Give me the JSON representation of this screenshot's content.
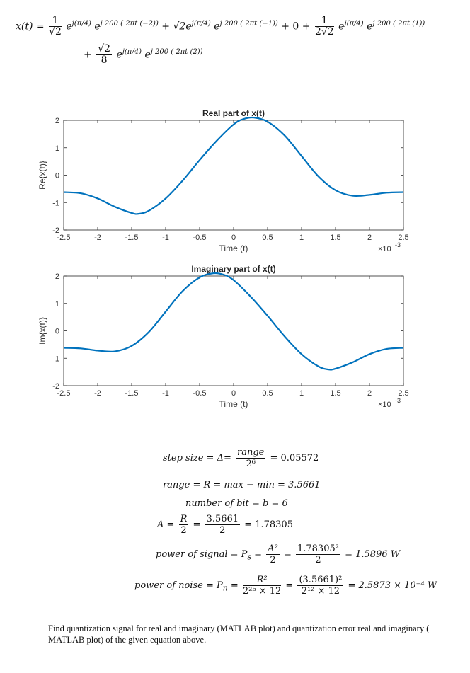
{
  "equation": {
    "lhs": "x(t) =",
    "t1_coef_num": "1",
    "t1_coef_den": "√2",
    "t1_exp1": "e",
    "t1_phase": "j(π/4)",
    "t1_exp2": "e",
    "t1_arg": "j 200 ( 2πt (−2))",
    "plus1": "+",
    "t2_coef": "√2e",
    "t2_phase": "j(π/4)",
    "t2_exp": "e",
    "t2_arg": "j 200 ( 2πt (−1))",
    "plus2": "+ 0 +",
    "t3_coef_num": "1",
    "t3_coef_den": "2√2",
    "t3_exp1": "e",
    "t3_phase": "j(π/4)",
    "t3_exp2": "e",
    "t3_arg": "j 200 ( 2πt (1))",
    "plus3": "+",
    "t4_coef_num": "√2",
    "t4_coef_den": "8",
    "t4_exp1": "e",
    "t4_phase": "j(π/4)",
    "t4_exp2": "e",
    "t4_arg": "j 200 ( 2πt (2))"
  },
  "chart_data": [
    {
      "type": "line",
      "title": "Real part of x(t)",
      "xlabel": "Time (t)",
      "ylabel": "Re{x(t)}",
      "x_scale_label": "×10",
      "x_scale_exp": "-3",
      "xlim": [
        -2.5,
        2.5
      ],
      "ylim": [
        -2,
        2
      ],
      "xticks": [
        "-2.5",
        "-2",
        "-1.5",
        "-1",
        "-0.5",
        "0",
        "0.5",
        "1",
        "1.5",
        "2",
        "2.5"
      ],
      "yticks": [
        "2",
        "1",
        "0",
        "-1",
        "-2"
      ],
      "color": "#0072bd",
      "x": [
        -2.5,
        -2.25,
        -2.0,
        -1.75,
        -1.5,
        -1.4,
        -1.25,
        -1.0,
        -0.75,
        -0.5,
        -0.25,
        0.0,
        0.15,
        0.3,
        0.5,
        0.75,
        1.0,
        1.25,
        1.5,
        1.75,
        2.0,
        2.25,
        2.5
      ],
      "y": [
        -0.62,
        -0.66,
        -0.85,
        -1.15,
        -1.38,
        -1.41,
        -1.3,
        -0.85,
        -0.2,
        0.55,
        1.25,
        1.85,
        2.05,
        2.1,
        1.95,
        1.45,
        0.7,
        -0.05,
        -0.55,
        -0.75,
        -0.72,
        -0.64,
        -0.62
      ]
    },
    {
      "type": "line",
      "title": "Imaginary part of x(t)",
      "xlabel": "Time (t)",
      "ylabel": "Im{x(t)}",
      "x_scale_label": "×10",
      "x_scale_exp": "-3",
      "xlim": [
        -2.5,
        2.5
      ],
      "ylim": [
        -2,
        2
      ],
      "xticks": [
        "-2.5",
        "-2",
        "-1.5",
        "-1",
        "-0.5",
        "0",
        "0.5",
        "1",
        "1.5",
        "2",
        "2.5"
      ],
      "yticks": [
        "2",
        "1",
        "0",
        "-1",
        "-2"
      ],
      "color": "#0072bd",
      "x": [
        -2.5,
        -2.25,
        -2.0,
        -1.75,
        -1.5,
        -1.25,
        -1.0,
        -0.75,
        -0.5,
        -0.3,
        -0.15,
        0.0,
        0.25,
        0.5,
        0.75,
        1.0,
        1.25,
        1.4,
        1.5,
        1.75,
        2.0,
        2.25,
        2.5
      ],
      "y": [
        -0.62,
        -0.64,
        -0.72,
        -0.75,
        -0.55,
        -0.05,
        0.7,
        1.45,
        1.95,
        2.1,
        2.05,
        1.85,
        1.25,
        0.55,
        -0.2,
        -0.85,
        -1.3,
        -1.41,
        -1.38,
        -1.15,
        -0.85,
        -0.66,
        -0.62
      ]
    }
  ],
  "formulas": {
    "step_label": "step size = Δ=",
    "step_num": "range",
    "step_den": "2⁶",
    "step_val": "= 0.05572",
    "range_line": "range = R = max − min = 3.5661",
    "bits_line": "number of bit = b = 6",
    "a_lhs": "A =",
    "a_num1": "R",
    "a_den1": "2",
    "a_eq": "=",
    "a_num2": "3.5661",
    "a_den2": "2",
    "a_val": "= 1.78305",
    "ps_label": "power of signal = P",
    "ps_sub": "s",
    "ps_eq": "=",
    "ps_num1": "A²",
    "ps_den1": "2",
    "ps_eq2": "=",
    "ps_num2": "1.78305²",
    "ps_den2": "2",
    "ps_val": "= 1.5896 W",
    "pn_label": "power of noise = P",
    "pn_sub": "n",
    "pn_eq": "=",
    "pn_num1": "R²",
    "pn_den1": "2²ᵇ × 12",
    "pn_eq2": "=",
    "pn_num2": "(3.5661)²",
    "pn_den2": "2¹² × 12",
    "pn_val": "= 2.5873 × 10⁻⁴ W"
  },
  "footer": {
    "text": "Find quantization signal for real and imaginary (MATLAB plot) and quantization error real and imaginary ( MATLAB plot) of the given equation above."
  }
}
